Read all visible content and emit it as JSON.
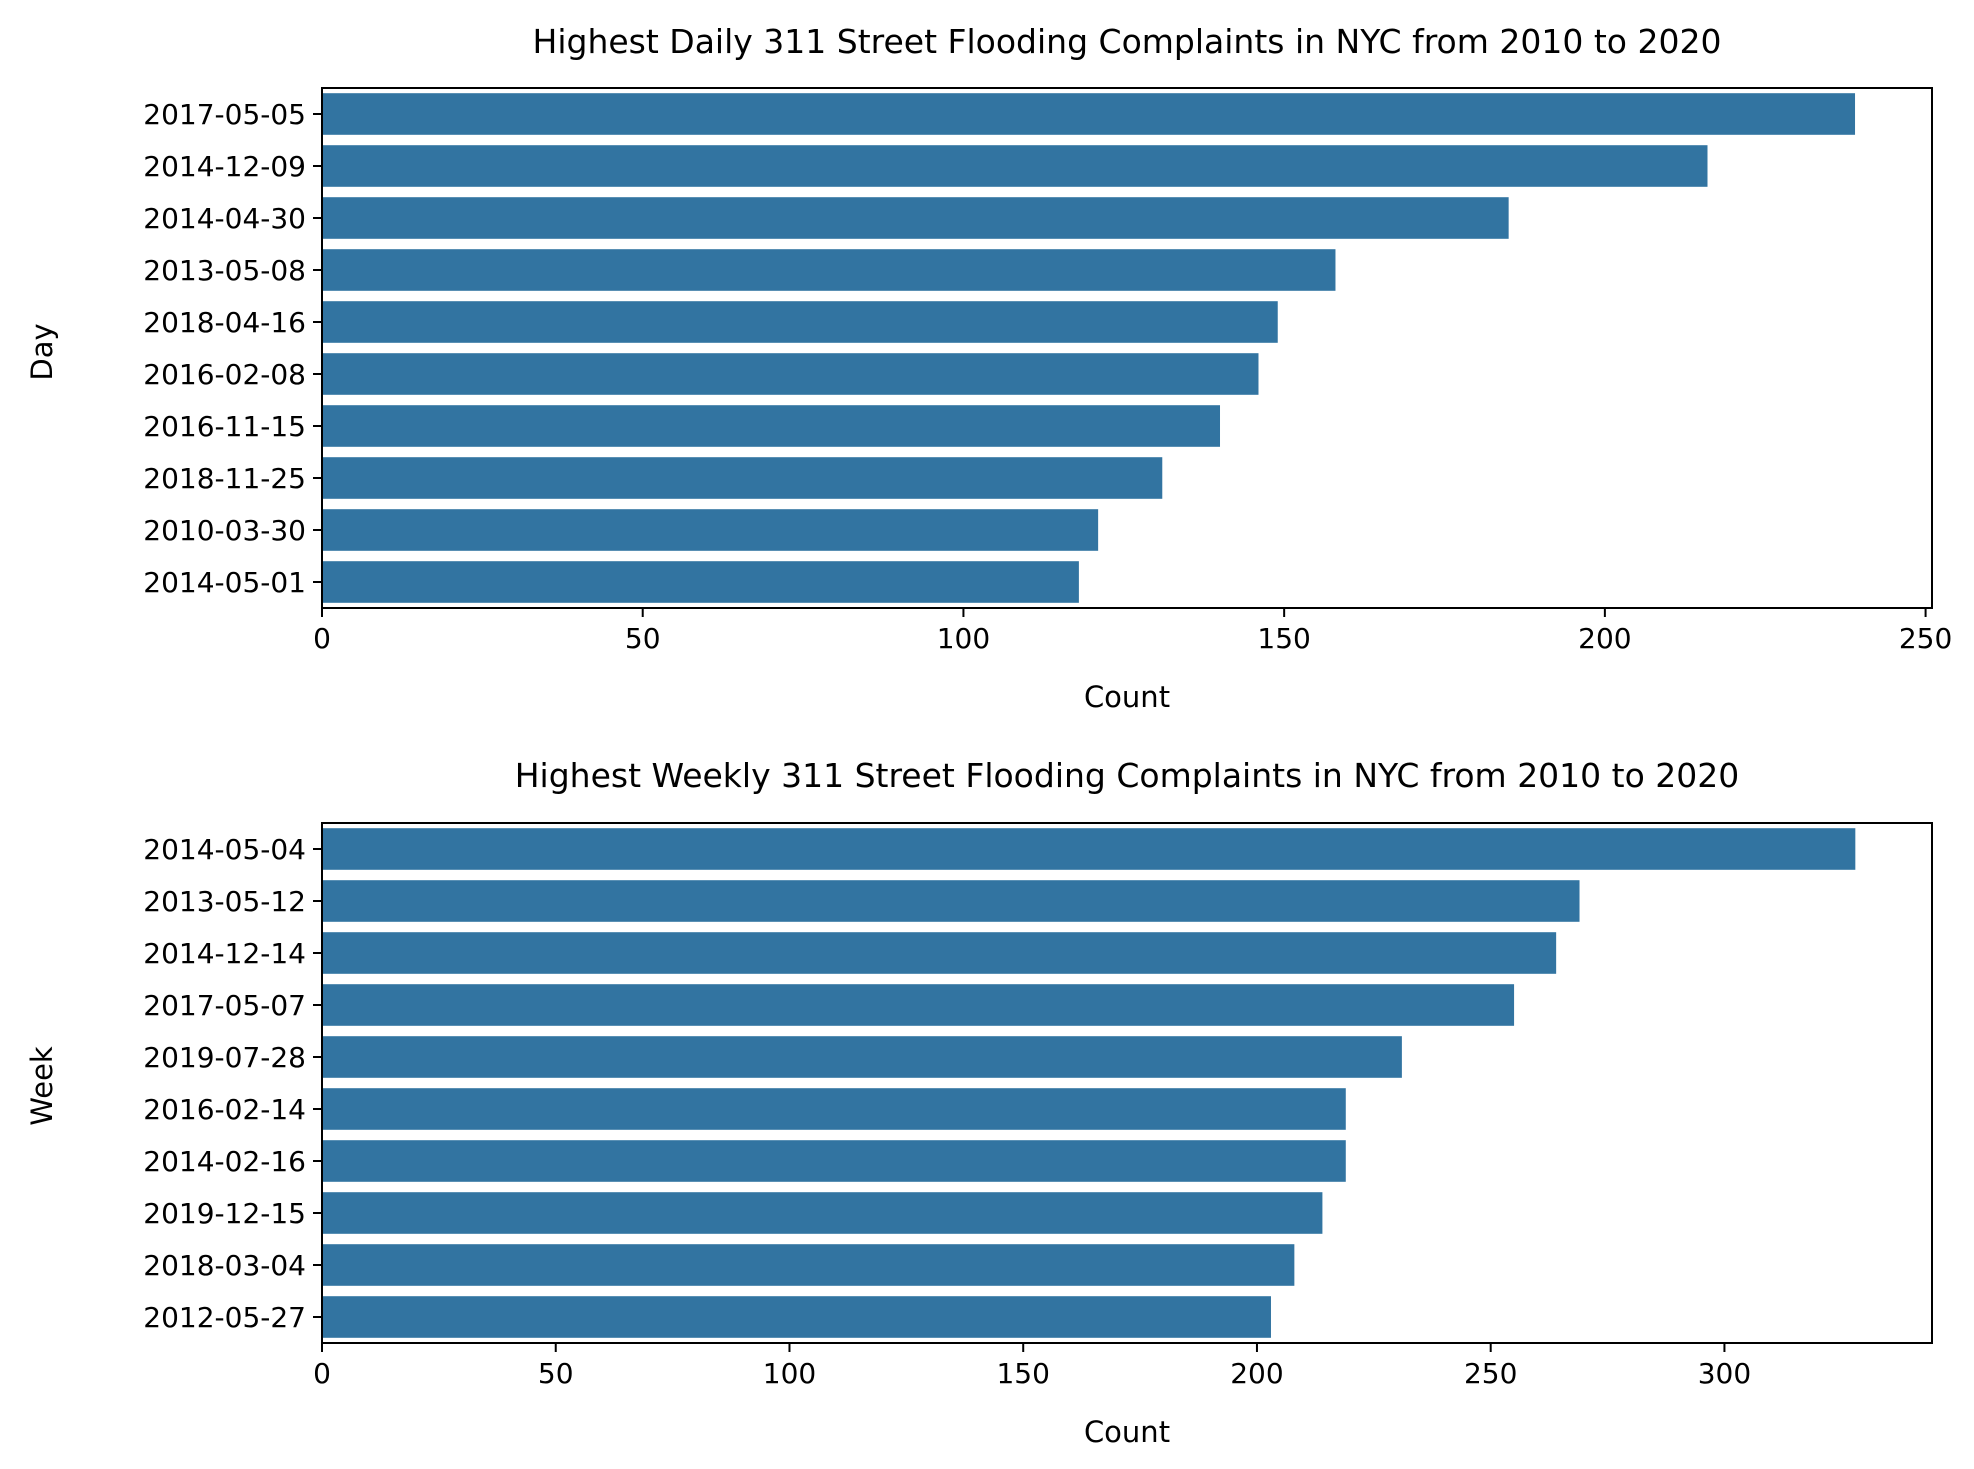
{
  "chart_data": [
    {
      "type": "bar",
      "orientation": "horizontal",
      "title": "Highest Daily 311 Street Flooding Complaints in NYC from 2010 to 2020",
      "xlabel": "Count",
      "ylabel": "Day",
      "xlim": [
        0,
        251
      ],
      "xticks": [
        0,
        50,
        100,
        150,
        200,
        250
      ],
      "grid": false,
      "color": "#3274a1",
      "categories": [
        "2017-05-05",
        "2014-12-09",
        "2014-04-30",
        "2013-05-08",
        "2018-04-16",
        "2016-02-08",
        "2016-11-15",
        "2018-11-25",
        "2010-03-30",
        "2014-05-01"
      ],
      "values": [
        239,
        216,
        185,
        158,
        149,
        146,
        140,
        131,
        121,
        118
      ]
    },
    {
      "type": "bar",
      "orientation": "horizontal",
      "title": "Highest Weekly 311 Street Flooding Complaints in NYC from 2010 to 2020",
      "xlabel": "Count",
      "ylabel": "Week",
      "xlim": [
        0,
        344.4
      ],
      "xticks": [
        0,
        50,
        100,
        150,
        200,
        250,
        300
      ],
      "grid": false,
      "color": "#3274a1",
      "categories": [
        "2014-05-04",
        "2013-05-12",
        "2014-12-14",
        "2017-05-07",
        "2019-07-28",
        "2016-02-14",
        "2014-02-16",
        "2019-12-15",
        "2018-03-04",
        "2012-05-27"
      ],
      "values": [
        328,
        269,
        264,
        255,
        231,
        219,
        219,
        214,
        208,
        203
      ]
    }
  ]
}
